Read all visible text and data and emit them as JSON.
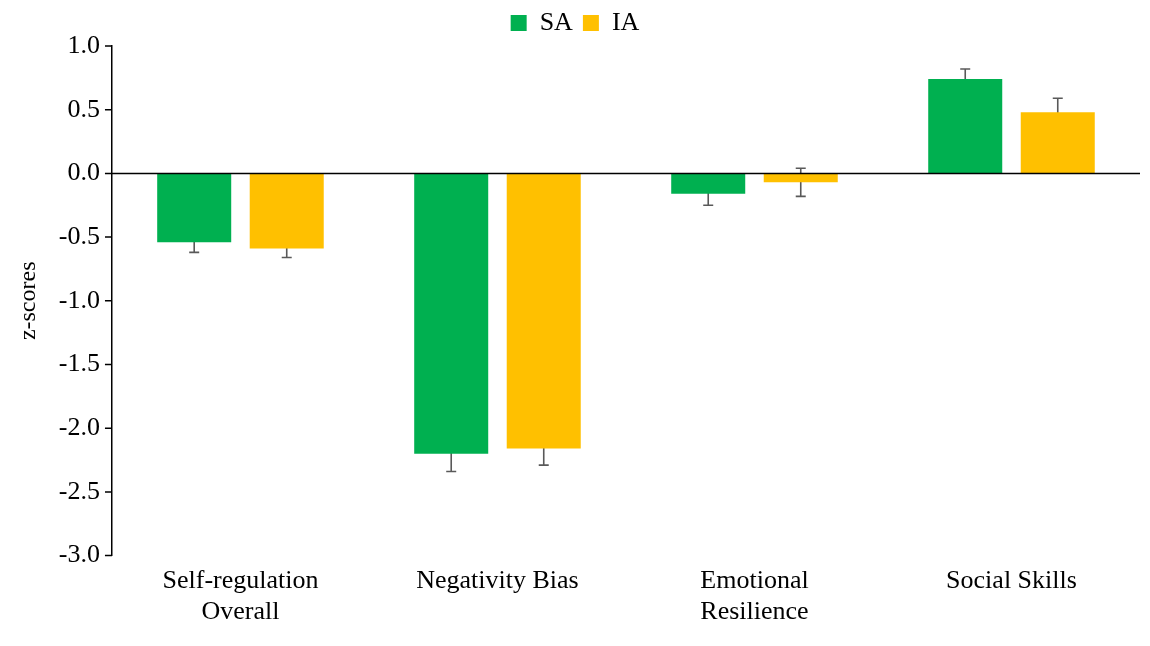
{
  "chart_data": {
    "type": "bar",
    "ylabel": "z-scores",
    "categories": [
      "Self-regulation Overall",
      "Negativity Bias",
      "Emotional Resilience",
      "Social Skills"
    ],
    "series": [
      {
        "name": "SA",
        "color": "#00b050",
        "values": [
          -0.54,
          -2.2,
          -0.16,
          0.74
        ],
        "errors": [
          0.08,
          0.14,
          0.09,
          0.08
        ]
      },
      {
        "name": "IA",
        "color": "#ffc000",
        "values": [
          -0.59,
          -2.16,
          -0.07,
          0.48
        ],
        "errors": [
          0.07,
          0.13,
          0.11,
          0.11
        ]
      }
    ],
    "ylim": [
      -3,
      1
    ],
    "yticks": [
      {
        "value": -3,
        "label": "-3.0"
      },
      {
        "value": -2.5,
        "label": "-2.5"
      },
      {
        "value": -2,
        "label": "-2.0"
      },
      {
        "value": -1.5,
        "label": "-1.5"
      },
      {
        "value": -1,
        "label": "-1.0"
      },
      {
        "value": -0.5,
        "label": "-0.5"
      },
      {
        "value": 0,
        "label": "0.0"
      },
      {
        "value": 0.5,
        "label": "0.5"
      },
      {
        "value": 1,
        "label": "1.0"
      }
    ],
    "ref_lines": [
      {
        "axis": "y",
        "value": 0,
        "color": "#000000",
        "line_style": "solid"
      }
    ],
    "grid": false,
    "legend": "top"
  }
}
